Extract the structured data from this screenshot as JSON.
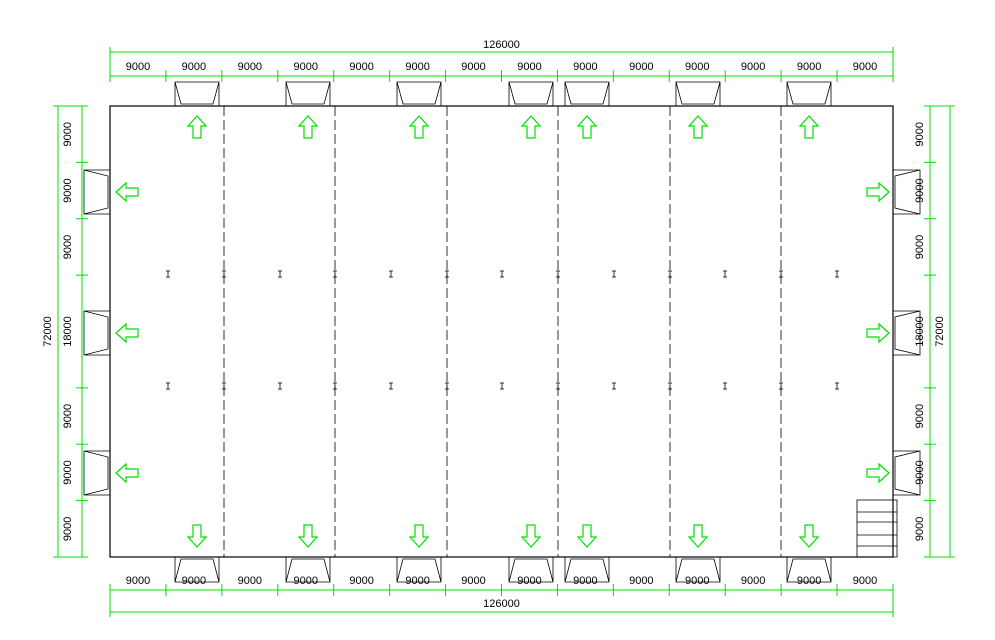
{
  "top": {
    "total": "126000",
    "segments": [
      "9000",
      "9000",
      "9000",
      "9000",
      "9000",
      "9000",
      "9000",
      "9000",
      "9000",
      "9000",
      "9000",
      "9000",
      "9000",
      "9000"
    ]
  },
  "bottom": {
    "total": "126000",
    "segments": [
      "9000",
      "9000",
      "9000",
      "9000",
      "9000",
      "9000",
      "9000",
      "9000",
      "9000",
      "9000",
      "9000",
      "9000",
      "9000",
      "9000"
    ]
  },
  "left": {
    "total": "72000",
    "segments": [
      "9000",
      "9000",
      "9000",
      "18000",
      "9000",
      "9000",
      "9000"
    ]
  },
  "right": {
    "total": "72000",
    "segments": [
      "9000",
      "9000",
      "9000",
      "18000",
      "9000",
      "9000",
      "9000"
    ]
  }
}
